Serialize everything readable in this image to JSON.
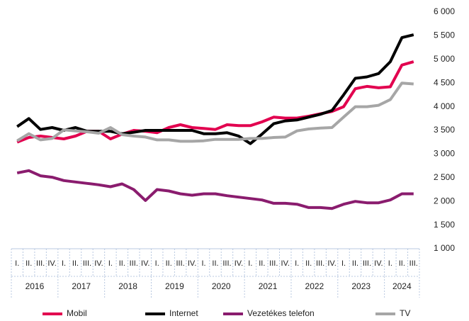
{
  "chart_data": {
    "type": "line",
    "categories": [
      "I.",
      "II.",
      "III.",
      "IV.",
      "I.",
      "II.",
      "III.",
      "IV.",
      "I.",
      "II.",
      "III.",
      "IV.",
      "I.",
      "II.",
      "III.",
      "IV.",
      "I.",
      "II.",
      "III.",
      "IV.",
      "I.",
      "II.",
      "III.",
      "IV.",
      "I.",
      "II.",
      "III.",
      "IV.",
      "I.",
      "II.",
      "III.",
      "IV.",
      "I.",
      "II.",
      "III."
    ],
    "years": [
      "2016",
      "2017",
      "2018",
      "2019",
      "2020",
      "2021",
      "2022",
      "2023",
      "2024"
    ],
    "ylim": [
      1000,
      6000
    ],
    "yticks": [
      {
        "value": 1000,
        "label": "1 000"
      },
      {
        "value": 1500,
        "label": "1 500"
      },
      {
        "value": 2000,
        "label": "2 000"
      },
      {
        "value": 2500,
        "label": "2 500"
      },
      {
        "value": 3000,
        "label": "3 000"
      },
      {
        "value": 3500,
        "label": "3 500"
      },
      {
        "value": 4000,
        "label": "4 000"
      },
      {
        "value": 4500,
        "label": "4 500"
      },
      {
        "value": 5000,
        "label": "5 000"
      },
      {
        "value": 5500,
        "label": "5 500"
      },
      {
        "value": 6000,
        "label": "6 000"
      }
    ],
    "grid": false,
    "series": [
      {
        "name": "Mobil",
        "color": "#e2004f",
        "values": [
          3250,
          3350,
          3380,
          3350,
          3320,
          3380,
          3480,
          3480,
          3320,
          3420,
          3500,
          3480,
          3450,
          3560,
          3620,
          3560,
          3540,
          3520,
          3620,
          3600,
          3600,
          3680,
          3780,
          3760,
          3760,
          3800,
          3850,
          3900,
          4000,
          4380,
          4430,
          4400,
          4420,
          4880,
          4950
        ]
      },
      {
        "name": "Internet",
        "color": "#000000",
        "values": [
          3580,
          3750,
          3520,
          3560,
          3500,
          3560,
          3480,
          3480,
          3480,
          3430,
          3460,
          3500,
          3500,
          3500,
          3500,
          3500,
          3430,
          3430,
          3450,
          3380,
          3220,
          3420,
          3640,
          3700,
          3720,
          3780,
          3840,
          3920,
          4250,
          4600,
          4630,
          4700,
          4950,
          5460,
          5520
        ]
      },
      {
        "name": "Vezetékes telefon",
        "color": "#8a1c6e",
        "values": [
          2600,
          2650,
          2540,
          2510,
          2440,
          2410,
          2380,
          2350,
          2310,
          2370,
          2250,
          2020,
          2250,
          2220,
          2160,
          2130,
          2160,
          2160,
          2120,
          2090,
          2060,
          2030,
          1960,
          1960,
          1940,
          1870,
          1870,
          1850,
          1940,
          2000,
          1970,
          1970,
          2030,
          2160,
          2160
        ]
      },
      {
        "name": "TV",
        "color": "#a6a6a6",
        "values": [
          3280,
          3430,
          3300,
          3330,
          3510,
          3490,
          3470,
          3440,
          3560,
          3410,
          3380,
          3360,
          3300,
          3300,
          3270,
          3270,
          3280,
          3310,
          3310,
          3310,
          3330,
          3330,
          3350,
          3360,
          3490,
          3530,
          3550,
          3560,
          3780,
          4000,
          4000,
          4030,
          4150,
          4500,
          4480
        ]
      }
    ]
  }
}
